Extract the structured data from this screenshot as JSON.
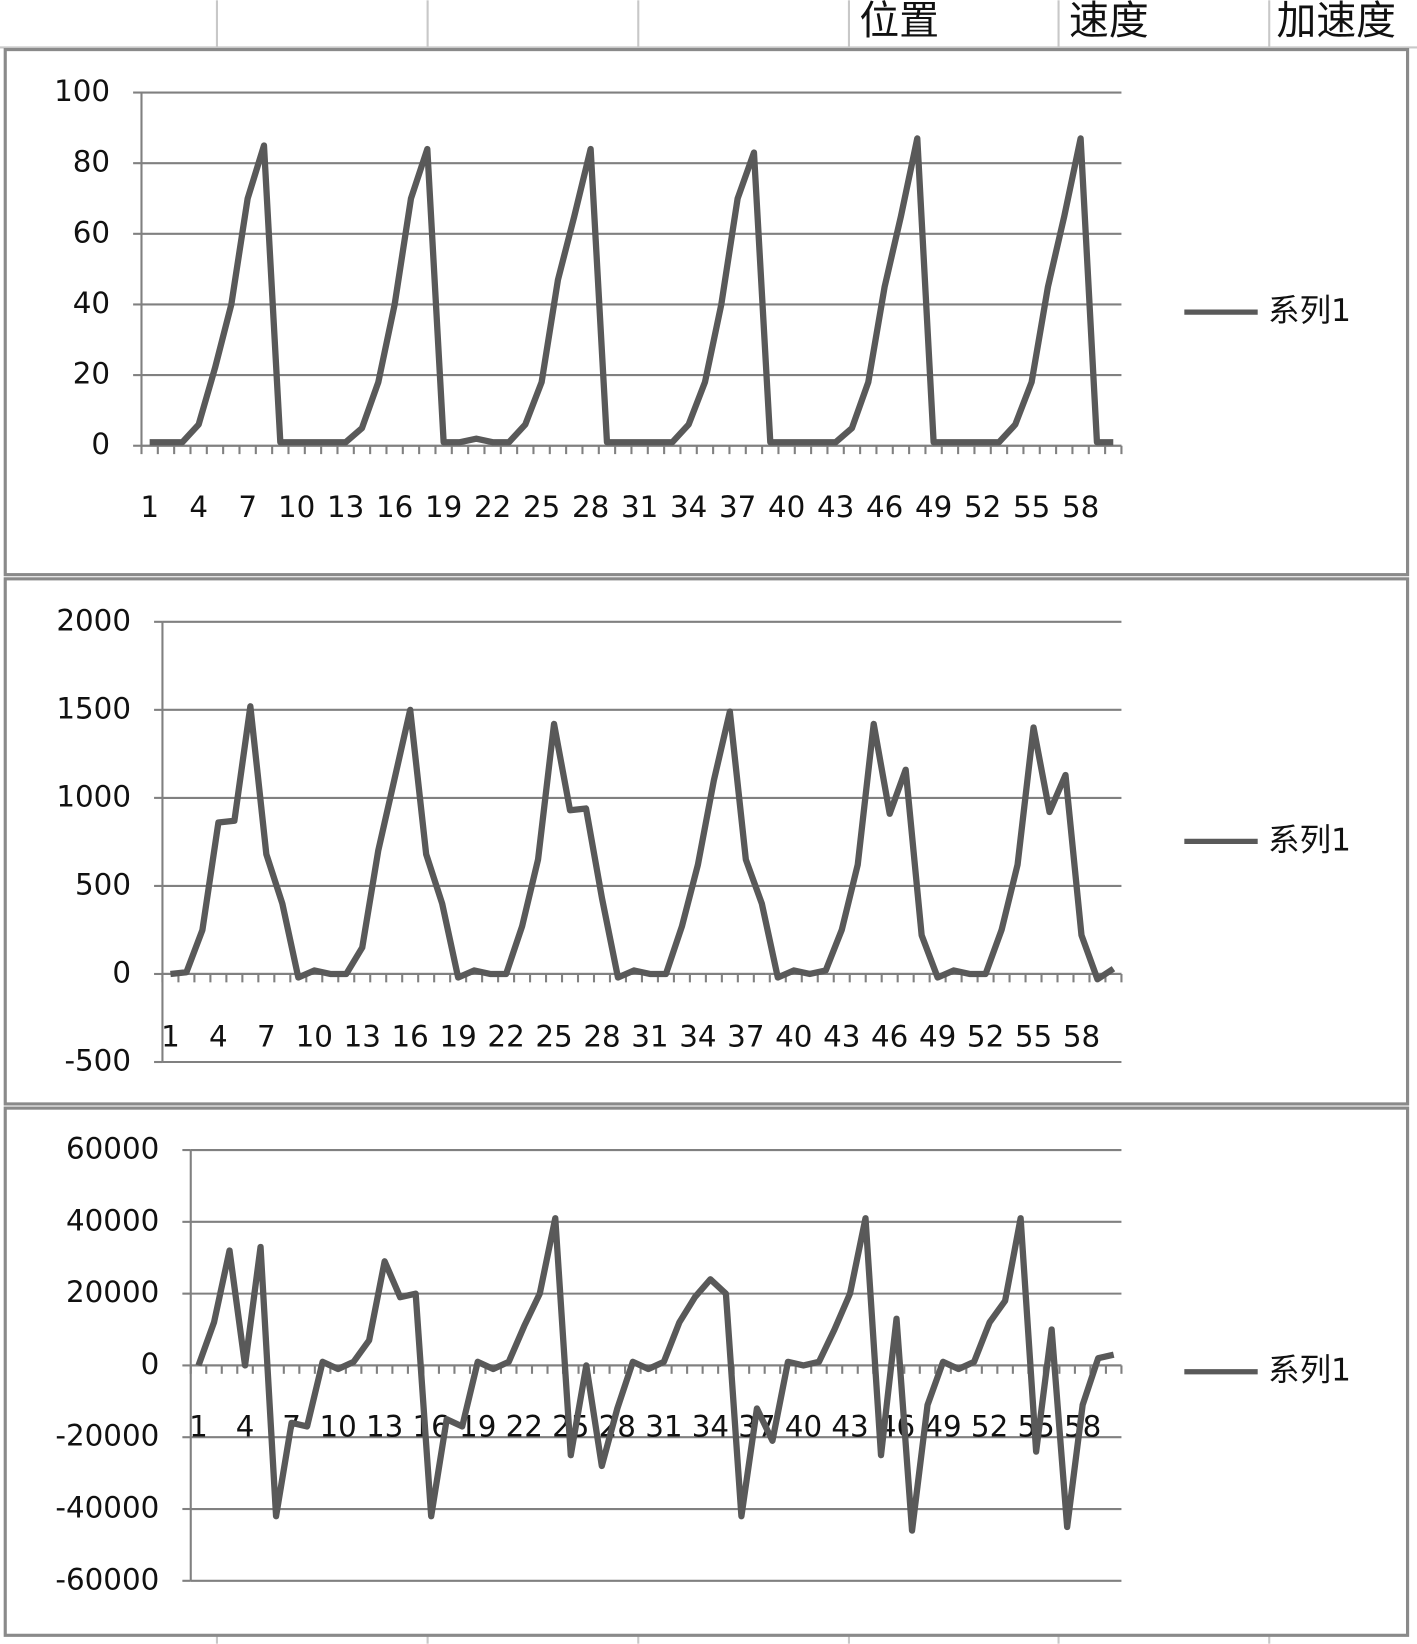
{
  "sheet": {
    "headers": [
      "位置",
      "速度",
      "加速度"
    ]
  },
  "chart_data": [
    {
      "type": "line",
      "categories": [
        1,
        null,
        null,
        4,
        null,
        null,
        7,
        null,
        null,
        10,
        null,
        null,
        13,
        null,
        null,
        16,
        null,
        null,
        19,
        null,
        null,
        22,
        null,
        null,
        25,
        null,
        null,
        28,
        null,
        null,
        31,
        null,
        null,
        34,
        null,
        null,
        37,
        null,
        null,
        40,
        null,
        null,
        43,
        null,
        null,
        46,
        null,
        null,
        49,
        null,
        null,
        52,
        null,
        null,
        55,
        null,
        null,
        58,
        null,
        null
      ],
      "series": [
        {
          "name": "系列1",
          "color": "#595959",
          "values": [
            1,
            1,
            1,
            6,
            22,
            40,
            70,
            85,
            1,
            1,
            1,
            1,
            1,
            5,
            18,
            40,
            70,
            84,
            1,
            1,
            2,
            1,
            1,
            6,
            18,
            47,
            65,
            84,
            1,
            1,
            1,
            1,
            1,
            6,
            18,
            40,
            70,
            83,
            1,
            1,
            1,
            1,
            1,
            5,
            18,
            45,
            65,
            87,
            1,
            1,
            1,
            1,
            1,
            6,
            18,
            45,
            65,
            87,
            1,
            1
          ]
        }
      ],
      "ylim": [
        0,
        100
      ],
      "yticks": [
        0,
        20,
        40,
        60,
        80,
        100
      ],
      "grid": true,
      "legend": "right"
    },
    {
      "type": "line",
      "categories": [
        1,
        null,
        null,
        4,
        null,
        null,
        7,
        null,
        null,
        10,
        null,
        null,
        13,
        null,
        null,
        16,
        null,
        null,
        19,
        null,
        null,
        22,
        null,
        null,
        25,
        null,
        null,
        28,
        null,
        null,
        31,
        null,
        null,
        34,
        null,
        null,
        37,
        null,
        null,
        40,
        null,
        null,
        43,
        null,
        null,
        46,
        null,
        null,
        49,
        null,
        null,
        52,
        null,
        null,
        55,
        null,
        null,
        58,
        null,
        null
      ],
      "series": [
        {
          "name": "系列1",
          "color": "#595959",
          "values": [
            0,
            10,
            250,
            860,
            870,
            1520,
            680,
            400,
            -20,
            20,
            0,
            0,
            150,
            700,
            1100,
            1500,
            680,
            400,
            -20,
            20,
            0,
            0,
            270,
            650,
            1420,
            930,
            940,
            430,
            -20,
            20,
            0,
            0,
            270,
            620,
            1100,
            1490,
            650,
            400,
            -20,
            20,
            0,
            20,
            250,
            620,
            1420,
            910,
            1160,
            220,
            -20,
            20,
            0,
            0,
            250,
            620,
            1400,
            920,
            1130,
            220,
            -30,
            30
          ]
        }
      ],
      "ylim": [
        -500,
        2000
      ],
      "yticks": [
        -500,
        0,
        500,
        1000,
        1500,
        2000
      ],
      "grid": true,
      "legend": "right"
    },
    {
      "type": "line",
      "categories": [
        1,
        null,
        null,
        4,
        null,
        null,
        7,
        null,
        null,
        10,
        null,
        null,
        13,
        null,
        null,
        16,
        null,
        null,
        19,
        null,
        null,
        22,
        null,
        null,
        25,
        null,
        null,
        28,
        null,
        null,
        31,
        null,
        null,
        34,
        null,
        null,
        37,
        null,
        null,
        40,
        null,
        null,
        43,
        null,
        null,
        46,
        null,
        null,
        49,
        null,
        null,
        52,
        null,
        null,
        55,
        null,
        null,
        58,
        null,
        null
      ],
      "series": [
        {
          "name": "系列1",
          "color": "#595959",
          "values": [
            0,
            12000,
            32000,
            0,
            33000,
            -42000,
            -16000,
            -17000,
            1000,
            -1000,
            1000,
            7000,
            29000,
            19000,
            20000,
            -42000,
            -15000,
            -17000,
            1000,
            -1000,
            1000,
            11000,
            20000,
            41000,
            -25000,
            0,
            -28000,
            -12000,
            1000,
            -1000,
            1000,
            12000,
            19000,
            24000,
            20000,
            -42000,
            -12000,
            -21000,
            1000,
            0,
            1000,
            10000,
            20000,
            41000,
            -25000,
            13000,
            -46000,
            -11000,
            1000,
            -1000,
            1000,
            12000,
            18000,
            41000,
            -24000,
            10000,
            -45000,
            -11000,
            2000,
            3000
          ]
        }
      ],
      "ylim": [
        -60000,
        60000
      ],
      "yticks": [
        -60000,
        -40000,
        -20000,
        0,
        20000,
        40000,
        60000
      ],
      "grid": true,
      "legend": "right"
    }
  ]
}
